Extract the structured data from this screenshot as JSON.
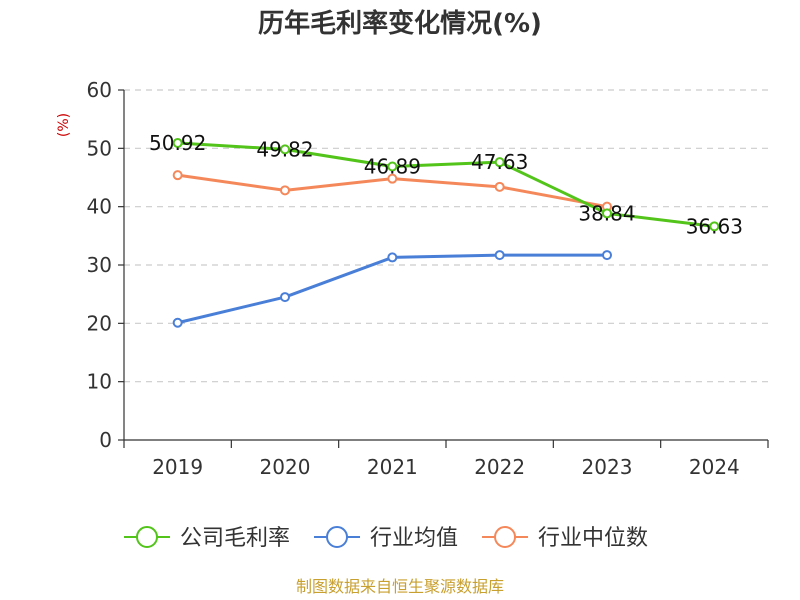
{
  "chart_data": {
    "type": "line",
    "title": "历年毛利率变化情况(%)",
    "ylabel": "(%)",
    "categories": [
      "2019",
      "2020",
      "2021",
      "2022",
      "2023",
      "2024"
    ],
    "ylim": [
      0,
      60
    ],
    "yticks": [
      "0",
      "10",
      "20",
      "30",
      "40",
      "50",
      "60"
    ],
    "grid": true,
    "legend_position": "bottom",
    "series": [
      {
        "name": "公司毛利率",
        "color": "#52c41a",
        "values": [
          50.92,
          49.82,
          46.89,
          47.63,
          38.84,
          36.63
        ],
        "labels": [
          "50.92",
          "49.82",
          "46.89",
          "47.63",
          "38.84",
          "36.63"
        ]
      },
      {
        "name": "行业均值",
        "color": "#4a7fd8",
        "values": [
          20.1,
          24.5,
          31.3,
          31.7,
          31.7,
          null
        ]
      },
      {
        "name": "行业中位数",
        "color": "#f5885a",
        "values": [
          45.4,
          42.8,
          44.8,
          43.4,
          40.0,
          null
        ]
      }
    ]
  },
  "source": "制图数据来自恒生聚源数据库",
  "colors": {
    "unit": "#cc0000",
    "source": "#c8a030",
    "axis": "#333333",
    "grid": "#cccccc"
  }
}
